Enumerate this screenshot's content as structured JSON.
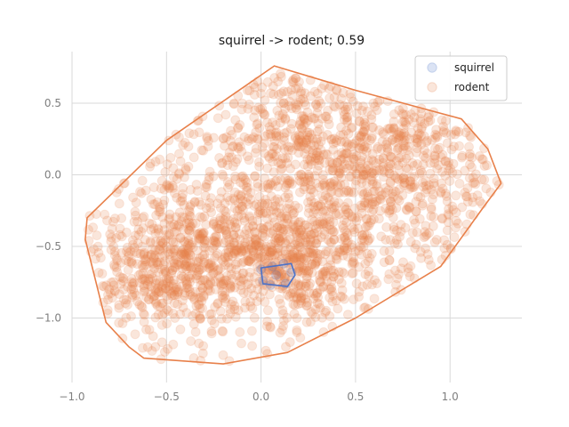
{
  "chart_data": {
    "type": "scatter",
    "title": "squirrel -> rodent; 0.59",
    "xlabel": "",
    "ylabel": "",
    "xlim": [
      -1.0,
      1.38
    ],
    "ylim": [
      -1.45,
      0.86
    ],
    "xticks": [
      -1.0,
      -0.5,
      0.0,
      0.5,
      1.0
    ],
    "xtick_labels": [
      "−1.0",
      "−0.5",
      "0.0",
      "0.5",
      "1.0"
    ],
    "yticks": [
      0.5,
      0.0,
      -0.5,
      -1.0
    ],
    "ytick_labels": [
      "0.5",
      "0.0",
      "−0.5",
      "−1.0"
    ],
    "grid": true,
    "legend_position": "top-right",
    "series": [
      {
        "name": "squirrel",
        "color": "#4c72c8",
        "marker_alpha": 0.2,
        "points": [
          [
            0.0,
            -0.66
          ],
          [
            0.06,
            -0.64
          ],
          [
            0.12,
            -0.62
          ],
          [
            0.16,
            -0.68
          ],
          [
            0.13,
            -0.76
          ],
          [
            0.05,
            -0.77
          ],
          [
            0.01,
            -0.74
          ],
          [
            0.08,
            -0.7
          ]
        ],
        "hull": [
          [
            0.0,
            -0.65
          ],
          [
            0.16,
            -0.62
          ],
          [
            0.18,
            -0.7
          ],
          [
            0.14,
            -0.78
          ],
          [
            0.01,
            -0.76
          ]
        ]
      },
      {
        "name": "rodent",
        "color": "#e8804a",
        "marker_alpha": 0.2,
        "cluster_centers": [
          [
            0.15,
            -0.62
          ],
          [
            -0.2,
            -0.45
          ],
          [
            0.45,
            -0.2
          ],
          [
            0.2,
            0.35
          ],
          [
            0.75,
            0.1
          ],
          [
            -0.5,
            -0.7
          ]
        ],
        "hull": [
          [
            0.07,
            0.76
          ],
          [
            0.5,
            0.59
          ],
          [
            1.06,
            0.39
          ],
          [
            1.2,
            0.18
          ],
          [
            1.27,
            -0.06
          ],
          [
            1.18,
            -0.22
          ],
          [
            0.95,
            -0.64
          ],
          [
            0.5,
            -1.0
          ],
          [
            0.14,
            -1.24
          ],
          [
            -0.2,
            -1.32
          ],
          [
            -0.62,
            -1.28
          ],
          [
            -0.7,
            -1.2
          ],
          [
            -0.82,
            -1.03
          ],
          [
            -0.93,
            -0.45
          ],
          [
            -0.92,
            -0.3
          ],
          [
            -0.5,
            0.24
          ],
          [
            0.07,
            0.76
          ]
        ]
      }
    ]
  }
}
